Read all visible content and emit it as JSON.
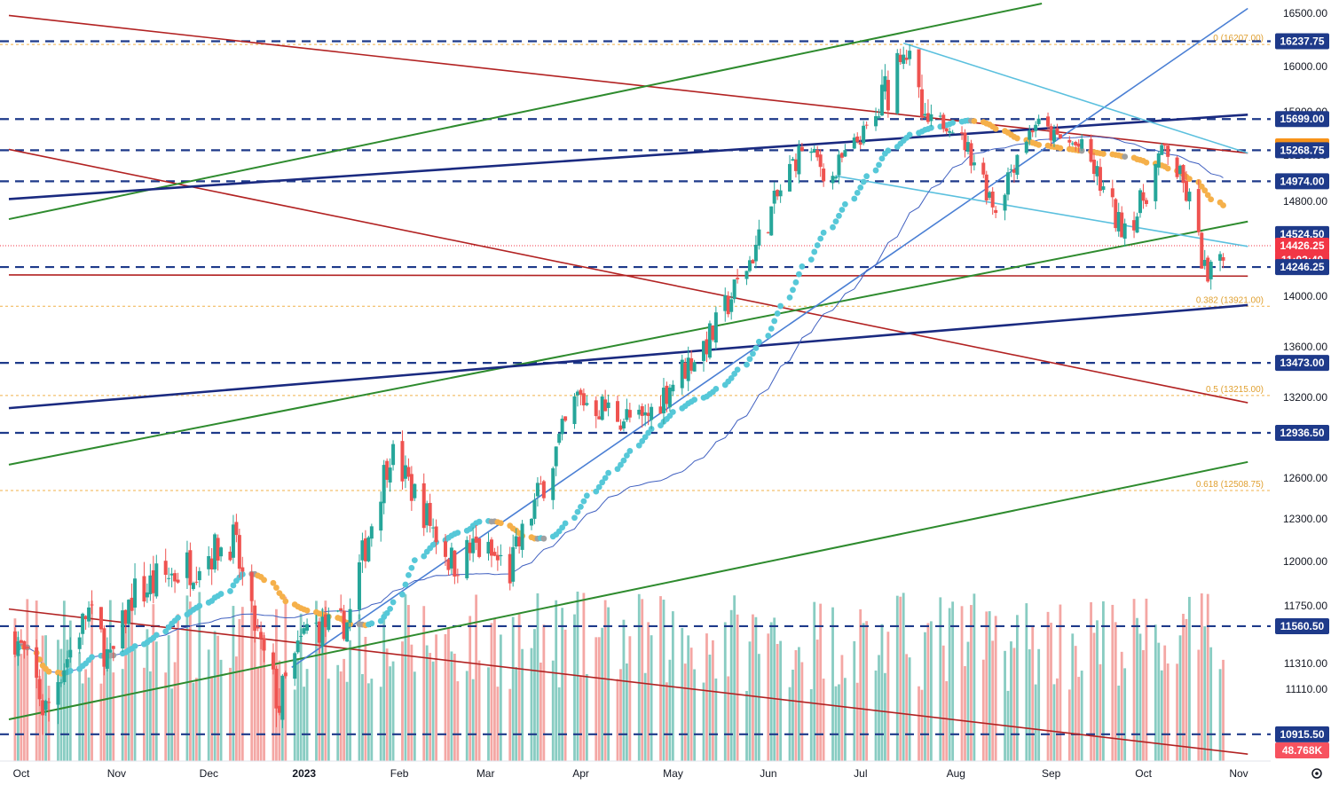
{
  "chart_data": {
    "type": "candlestick",
    "instrument_timeframe": "daily",
    "price_axis": {
      "min": 10800,
      "max": 16600,
      "ticks": [
        "16500.00",
        "16000.00",
        "15800.00",
        "15200.00",
        "14800.00",
        "14000.00",
        "13600.00",
        "13200.00",
        "12600.00",
        "12300.00",
        "12000.00",
        "11750.00",
        "11560.00",
        "11310.00",
        "11110.00"
      ]
    },
    "time_axis": {
      "labels": [
        {
          "text": "Oct",
          "bold": false
        },
        {
          "text": "Nov",
          "bold": false
        },
        {
          "text": "Dec",
          "bold": false
        },
        {
          "text": "2023",
          "bold": true
        },
        {
          "text": "Feb",
          "bold": false
        },
        {
          "text": "Mar",
          "bold": false
        },
        {
          "text": "Apr",
          "bold": false
        },
        {
          "text": "May",
          "bold": false
        },
        {
          "text": "Jun",
          "bold": false
        },
        {
          "text": "Jul",
          "bold": false
        },
        {
          "text": "Aug",
          "bold": false
        },
        {
          "text": "Sep",
          "bold": false
        },
        {
          "text": "Oct",
          "bold": false
        },
        {
          "text": "Nov",
          "bold": false
        }
      ]
    },
    "level_badges": [
      {
        "text": "16237.75",
        "price": 16237.75,
        "color": "#1e3a8a"
      },
      {
        "text": "15699.00",
        "price": 15699,
        "color": "#1e3a8a"
      },
      {
        "text": "15322.00",
        "price": 15322,
        "color": "#f7931a"
      },
      {
        "text": "15268.75",
        "price": 15268.75,
        "color": "#1e3a8a"
      },
      {
        "text": "14974.00",
        "price": 14974,
        "color": "#1e3a8a"
      },
      {
        "text": "14524.50",
        "price": 14524.5,
        "color": "#1e3a8a"
      },
      {
        "text": "14426.25",
        "price": 14426.25,
        "color": "#f23645"
      },
      {
        "text": "11:02:40",
        "price": 14330,
        "color": "#f23645"
      },
      {
        "text": "14246.25",
        "price": 14246.25,
        "color": "#1e3a8a"
      },
      {
        "text": "13473.00",
        "price": 13473,
        "color": "#1e3a8a"
      },
      {
        "text": "12936.50",
        "price": 12936.5,
        "color": "#1e3a8a"
      },
      {
        "text": "11560.50",
        "price": 11560.5,
        "color": "#1e3a8a"
      },
      {
        "text": "10915.50",
        "price": 10915.5,
        "color": "#1e3a8a"
      },
      {
        "text": "48.768K",
        "price": 10810,
        "color": "#f7525f"
      }
    ],
    "fib_levels": [
      {
        "text": "0 (16207.00)",
        "price": 16207
      },
      {
        "text": "0.382 (13921.00)",
        "price": 13921
      },
      {
        "text": "0.5 (13215.00)",
        "price": 13215
      },
      {
        "text": "0.618 (12508.75)",
        "price": 12508.75
      }
    ],
    "horizontal_levels": [
      16237.75,
      15699,
      15268.75,
      14974,
      14246.25,
      13473,
      12936.5,
      11560.5,
      10915.5
    ],
    "price_key_points": [
      {
        "date": "2022-10-03",
        "price": 11500
      },
      {
        "date": "2022-10-13",
        "price": 11000
      },
      {
        "date": "2022-10-27",
        "price": 11700
      },
      {
        "date": "2022-11-03",
        "price": 11300
      },
      {
        "date": "2022-11-10",
        "price": 11800
      },
      {
        "date": "2022-11-30",
        "price": 12000
      },
      {
        "date": "2022-12-13",
        "price": 12150
      },
      {
        "date": "2022-12-22",
        "price": 11400
      },
      {
        "date": "2022-12-28",
        "price": 11050
      },
      {
        "date": "2023-01-06",
        "price": 11550
      },
      {
        "date": "2023-01-19",
        "price": 11600
      },
      {
        "date": "2023-02-02",
        "price": 12800
      },
      {
        "date": "2023-02-22",
        "price": 12000
      },
      {
        "date": "2023-03-02",
        "price": 12100
      },
      {
        "date": "2023-03-13",
        "price": 11950
      },
      {
        "date": "2023-04-04",
        "price": 13200
      },
      {
        "date": "2023-04-25",
        "price": 13000
      },
      {
        "date": "2023-05-04",
        "price": 13300
      },
      {
        "date": "2023-05-18",
        "price": 13700
      },
      {
        "date": "2023-05-30",
        "price": 14300
      },
      {
        "date": "2023-06-16",
        "price": 15300
      },
      {
        "date": "2023-06-26",
        "price": 15000
      },
      {
        "date": "2023-07-06",
        "price": 15500
      },
      {
        "date": "2023-07-19",
        "price": 16200
      },
      {
        "date": "2023-07-26",
        "price": 15650
      },
      {
        "date": "2023-08-03",
        "price": 15650
      },
      {
        "date": "2023-08-18",
        "price": 14750
      },
      {
        "date": "2023-08-31",
        "price": 15650
      },
      {
        "date": "2023-09-06",
        "price": 15450
      },
      {
        "date": "2023-09-15",
        "price": 15300
      },
      {
        "date": "2023-09-27",
        "price": 14600
      },
      {
        "date": "2023-10-03",
        "price": 14700
      },
      {
        "date": "2023-10-12",
        "price": 15300
      },
      {
        "date": "2023-10-20",
        "price": 14800
      },
      {
        "date": "2023-10-26",
        "price": 14100
      },
      {
        "date": "2023-10-31",
        "price": 14426
      }
    ],
    "colors": {
      "up_candle": "#26a69a",
      "down_candle": "#ef5350",
      "up_volume": "#88ccc2",
      "down_volume": "#f4a7a4",
      "dashed_level": "#1e3a8a",
      "fib_dotted": "#f0b14a",
      "red_channel": "#b22222",
      "green_channel": "#2e8b2e",
      "navy_trendline": "#1a2a80",
      "blue_trendline": "#4a7fd4",
      "cyan_channel": "#5bc0de",
      "ma_rising": "#56c8d8",
      "ma_falling": "#f5b04a",
      "ma_flat": "#a0a0a0",
      "ma_thin": "#4060c0",
      "last_price": "#f23645"
    }
  }
}
